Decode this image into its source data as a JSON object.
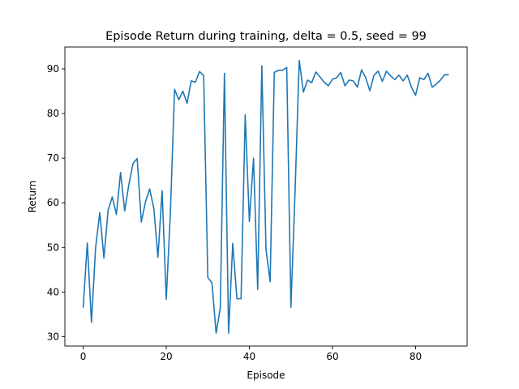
{
  "chart_data": {
    "type": "line",
    "title": "Episode Return during training, delta = 0.5, seed = 99",
    "xlabel": "Episode",
    "ylabel": "Return",
    "xlim": [
      -4.4,
      92.4
    ],
    "ylim": [
      27.9,
      94.9
    ],
    "xticks": [
      0,
      20,
      40,
      60,
      80
    ],
    "yticks": [
      30,
      40,
      50,
      60,
      70,
      80,
      90
    ],
    "grid": false,
    "line_color": "#1f77b4",
    "series": [
      {
        "values": [
          36.5,
          51.0,
          33.2,
          50.0,
          57.8,
          47.6,
          58.3,
          61.3,
          57.4,
          66.8,
          58.2,
          64.1,
          68.8,
          69.9,
          55.7,
          60.2,
          63.1,
          58.8,
          47.8,
          62.7,
          38.4,
          58.0,
          85.4,
          83.1,
          85.0,
          82.3,
          87.3,
          87.0,
          89.4,
          88.5,
          43.3,
          42.0,
          30.8,
          36.4,
          89.0,
          30.8,
          50.9,
          38.5,
          38.5,
          79.7,
          55.8,
          70.0,
          40.6,
          90.7,
          49.6,
          42.3,
          89.2,
          89.7,
          89.7,
          90.3,
          36.6,
          62.6,
          91.9,
          84.8,
          87.5,
          86.9,
          89.3,
          88.2,
          87.0,
          86.2,
          87.7,
          88.0,
          89.2,
          86.2,
          87.5,
          87.3,
          85.9,
          89.8,
          88.0,
          85.1,
          88.6,
          89.5,
          87.2,
          89.5,
          88.4,
          87.6,
          88.6,
          87.3,
          88.6,
          85.9,
          84.1,
          88.0,
          87.6,
          89.0,
          85.9,
          86.6,
          87.5,
          88.7,
          88.7
        ]
      }
    ]
  }
}
